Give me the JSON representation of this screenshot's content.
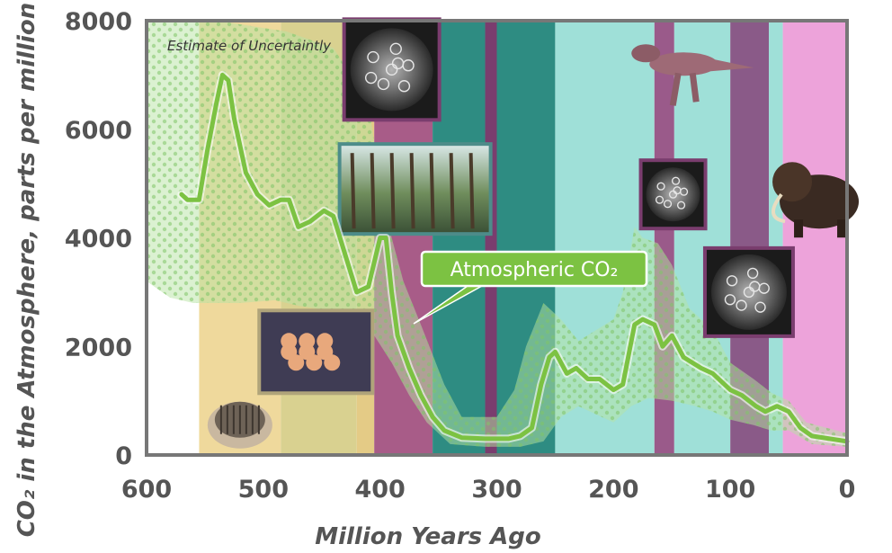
{
  "chart_data": {
    "type": "line",
    "xlabel": "Million Years Ago",
    "ylabel": "CO₂ in the Atmosphere, parts per million",
    "xlim": [
      600,
      0
    ],
    "ylim": [
      0,
      8000
    ],
    "x_ticks": [
      "600",
      "500",
      "400",
      "300",
      "200",
      "100",
      "0"
    ],
    "y_ticks": [
      "0",
      "2000",
      "4000",
      "6000",
      "8000"
    ],
    "grid": false,
    "series": [
      {
        "name": "Atmospheric CO₂",
        "color": "#7cc242",
        "points": [
          [
            570,
            4800
          ],
          [
            565,
            4700
          ],
          [
            555,
            4700
          ],
          [
            548,
            5600
          ],
          [
            540,
            6500
          ],
          [
            535,
            7000
          ],
          [
            530,
            6900
          ],
          [
            525,
            6200
          ],
          [
            515,
            5200
          ],
          [
            505,
            4800
          ],
          [
            495,
            4600
          ],
          [
            485,
            4700
          ],
          [
            478,
            4700
          ],
          [
            470,
            4200
          ],
          [
            460,
            4300
          ],
          [
            448,
            4500
          ],
          [
            440,
            4400
          ],
          [
            430,
            3700
          ],
          [
            420,
            3000
          ],
          [
            410,
            3100
          ],
          [
            400,
            4000
          ],
          [
            395,
            4000
          ],
          [
            390,
            3000
          ],
          [
            385,
            2200
          ],
          [
            375,
            1600
          ],
          [
            365,
            1100
          ],
          [
            355,
            700
          ],
          [
            345,
            450
          ],
          [
            330,
            320
          ],
          [
            310,
            300
          ],
          [
            290,
            300
          ],
          [
            280,
            350
          ],
          [
            270,
            500
          ],
          [
            262,
            1300
          ],
          [
            255,
            1800
          ],
          [
            250,
            1900
          ],
          [
            240,
            1500
          ],
          [
            232,
            1600
          ],
          [
            222,
            1400
          ],
          [
            212,
            1400
          ],
          [
            200,
            1200
          ],
          [
            192,
            1300
          ],
          [
            182,
            2400
          ],
          [
            175,
            2500
          ],
          [
            165,
            2400
          ],
          [
            158,
            2000
          ],
          [
            150,
            2200
          ],
          [
            140,
            1800
          ],
          [
            125,
            1600
          ],
          [
            115,
            1500
          ],
          [
            100,
            1200
          ],
          [
            90,
            1100
          ],
          [
            78,
            900
          ],
          [
            70,
            800
          ],
          [
            60,
            900
          ],
          [
            50,
            800
          ],
          [
            40,
            500
          ],
          [
            30,
            350
          ],
          [
            15,
            300
          ],
          [
            0,
            250
          ]
        ]
      }
    ],
    "uncertainty_band": {
      "name": "Estimate of Uncertaintly",
      "color": "#b7e3a3",
      "upper": [
        [
          600,
          8000
        ],
        [
          560,
          8000
        ],
        [
          540,
          8000
        ],
        [
          480,
          7800
        ],
        [
          440,
          7500
        ],
        [
          410,
          6500
        ],
        [
          400,
          5000
        ],
        [
          390,
          4000
        ],
        [
          380,
          3200
        ],
        [
          365,
          2400
        ],
        [
          345,
          1300
        ],
        [
          330,
          700
        ],
        [
          300,
          700
        ],
        [
          285,
          1200
        ],
        [
          275,
          2000
        ],
        [
          260,
          2800
        ],
        [
          245,
          2500
        ],
        [
          230,
          2100
        ],
        [
          215,
          2300
        ],
        [
          200,
          2500
        ],
        [
          192,
          3000
        ],
        [
          182,
          4200
        ],
        [
          175,
          4000
        ],
        [
          162,
          3900
        ],
        [
          150,
          3500
        ],
        [
          135,
          2700
        ],
        [
          115,
          2300
        ],
        [
          100,
          1700
        ],
        [
          80,
          1400
        ],
        [
          65,
          1150
        ],
        [
          50,
          1000
        ],
        [
          35,
          600
        ],
        [
          0,
          400
        ]
      ],
      "lower": [
        [
          0,
          150
        ],
        [
          30,
          200
        ],
        [
          50,
          450
        ],
        [
          65,
          450
        ],
        [
          80,
          550
        ],
        [
          100,
          650
        ],
        [
          115,
          800
        ],
        [
          130,
          900
        ],
        [
          150,
          1000
        ],
        [
          170,
          1050
        ],
        [
          185,
          900
        ],
        [
          200,
          600
        ],
        [
          215,
          750
        ],
        [
          230,
          900
        ],
        [
          245,
          700
        ],
        [
          260,
          250
        ],
        [
          280,
          150
        ],
        [
          310,
          150
        ],
        [
          340,
          200
        ],
        [
          360,
          600
        ],
        [
          375,
          1100
        ],
        [
          390,
          1700
        ],
        [
          405,
          2200
        ],
        [
          420,
          2500
        ],
        [
          440,
          2650
        ],
        [
          470,
          2750
        ],
        [
          490,
          2850
        ],
        [
          520,
          2800
        ],
        [
          560,
          2800
        ],
        [
          580,
          2900
        ],
        [
          600,
          3200
        ]
      ]
    },
    "periods": [
      {
        "start": 555,
        "end": 485,
        "color": "#efd99c"
      },
      {
        "start": 485,
        "end": 420,
        "color": "#d9d190"
      },
      {
        "start": 420,
        "end": 405,
        "color": "#e4cb86"
      },
      {
        "start": 405,
        "end": 355,
        "color": "#a85c88"
      },
      {
        "start": 355,
        "end": 310,
        "color": "#2e8c82"
      },
      {
        "start": 310,
        "end": 300,
        "color": "#7a3d6e"
      },
      {
        "start": 300,
        "end": 250,
        "color": "#2e8c82"
      },
      {
        "start": 250,
        "end": 165,
        "color": "#9fe0d8"
      },
      {
        "start": 165,
        "end": 148,
        "color": "#9a5a8a"
      },
      {
        "start": 148,
        "end": 100,
        "color": "#9fe0d8"
      },
      {
        "start": 100,
        "end": 67,
        "color": "#8a5a88"
      },
      {
        "start": 67,
        "end": 55,
        "color": "#9fe0d8"
      },
      {
        "start": 55,
        "end": 0,
        "color": "#eda3da"
      }
    ],
    "annotations": [
      {
        "text": "Estimate of Uncertaintly"
      },
      {
        "text": "Atmospheric CO₂"
      }
    ],
    "illustrations": [
      {
        "name": "trilobite-fossil-image",
        "x": 520,
        "y": 650
      },
      {
        "name": "coral-reef-image",
        "x": 455,
        "y": 1900
      },
      {
        "name": "diatoms-image",
        "x": 390,
        "y": 7100
      },
      {
        "name": "carboniferous-forest-image",
        "x": 370,
        "y": 4900
      },
      {
        "name": "tyrannosaurus-image",
        "x": 140,
        "y": 7200
      },
      {
        "name": "coccoliths-image",
        "x": 149,
        "y": 4800
      },
      {
        "name": "foraminifera-image",
        "x": 84,
        "y": 3000
      },
      {
        "name": "mammoth-image",
        "x": 30,
        "y": 4800
      }
    ]
  }
}
